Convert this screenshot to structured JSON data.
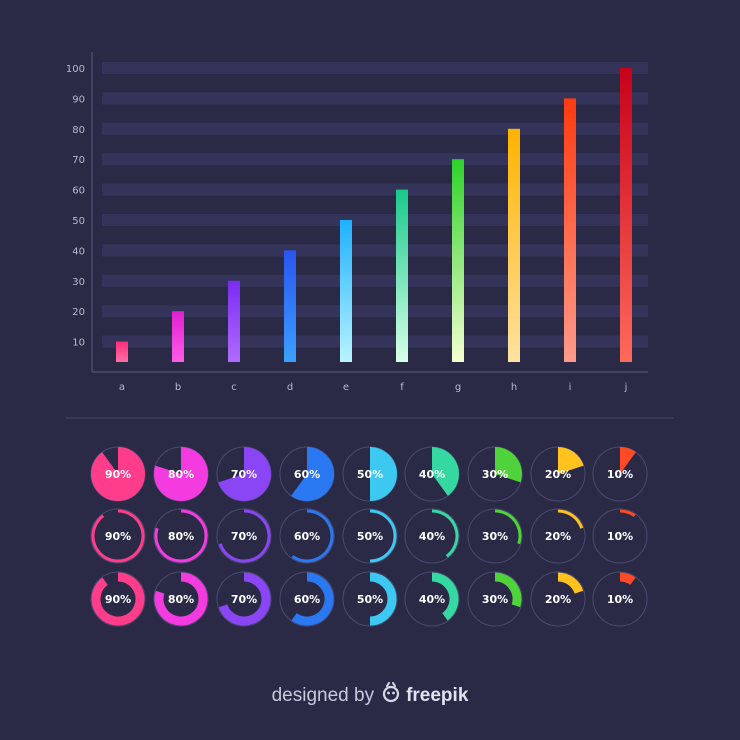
{
  "chart_data": {
    "type": "bar",
    "categories": [
      "a",
      "b",
      "c",
      "d",
      "e",
      "f",
      "g",
      "h",
      "i",
      "j"
    ],
    "values": [
      10,
      20,
      30,
      40,
      50,
      60,
      70,
      80,
      90,
      100
    ],
    "ylim": [
      0,
      100
    ],
    "yticks": [
      10,
      20,
      30,
      40,
      50,
      60,
      70,
      80,
      90,
      100
    ],
    "title": "",
    "xlabel": "",
    "ylabel": "",
    "grid": true,
    "bar_gradients": [
      [
        "#ff2d7a",
        "#ff6fa3"
      ],
      [
        "#e01fd0",
        "#ff5ce8"
      ],
      [
        "#7a2cf0",
        "#b06bff"
      ],
      [
        "#2a55f0",
        "#3aa0ff"
      ],
      [
        "#1fb0ff",
        "#b8f4ff"
      ],
      [
        "#19c98a",
        "#d8ffe8"
      ],
      [
        "#2ed12a",
        "#f4ffd0"
      ],
      [
        "#ffb300",
        "#ffe1a0"
      ],
      [
        "#ff3a10",
        "#ff9a8a"
      ],
      [
        "#c8001a",
        "#ff6a5a"
      ]
    ]
  },
  "indicators": {
    "colors": [
      "#ff3d8b",
      "#f43be0",
      "#8a45f5",
      "#2a78f2",
      "#3cc8f0",
      "#35d8a0",
      "#4fd23a",
      "#ffc21e",
      "#ff4a25"
    ],
    "rows": [
      {
        "style": "pie",
        "values": [
          90,
          80,
          70,
          60,
          50,
          40,
          30,
          20,
          10
        ],
        "labels": [
          "90%",
          "80%",
          "70%",
          "60%",
          "50%",
          "40%",
          "30%",
          "20%",
          "10%"
        ]
      },
      {
        "style": "thin-ring",
        "values": [
          90,
          80,
          70,
          60,
          50,
          40,
          30,
          20,
          10
        ],
        "labels": [
          "90%",
          "80%",
          "70%",
          "60%",
          "50%",
          "40%",
          "30%",
          "20%",
          "10%"
        ]
      },
      {
        "style": "thick-ring",
        "values": [
          90,
          80,
          70,
          60,
          50,
          40,
          30,
          20,
          10
        ],
        "labels": [
          "90%",
          "80%",
          "70%",
          "60%",
          "50%",
          "40%",
          "30%",
          "20%",
          "10%"
        ]
      }
    ]
  },
  "credit": {
    "prefix": "designed by",
    "brand": "freepik"
  }
}
